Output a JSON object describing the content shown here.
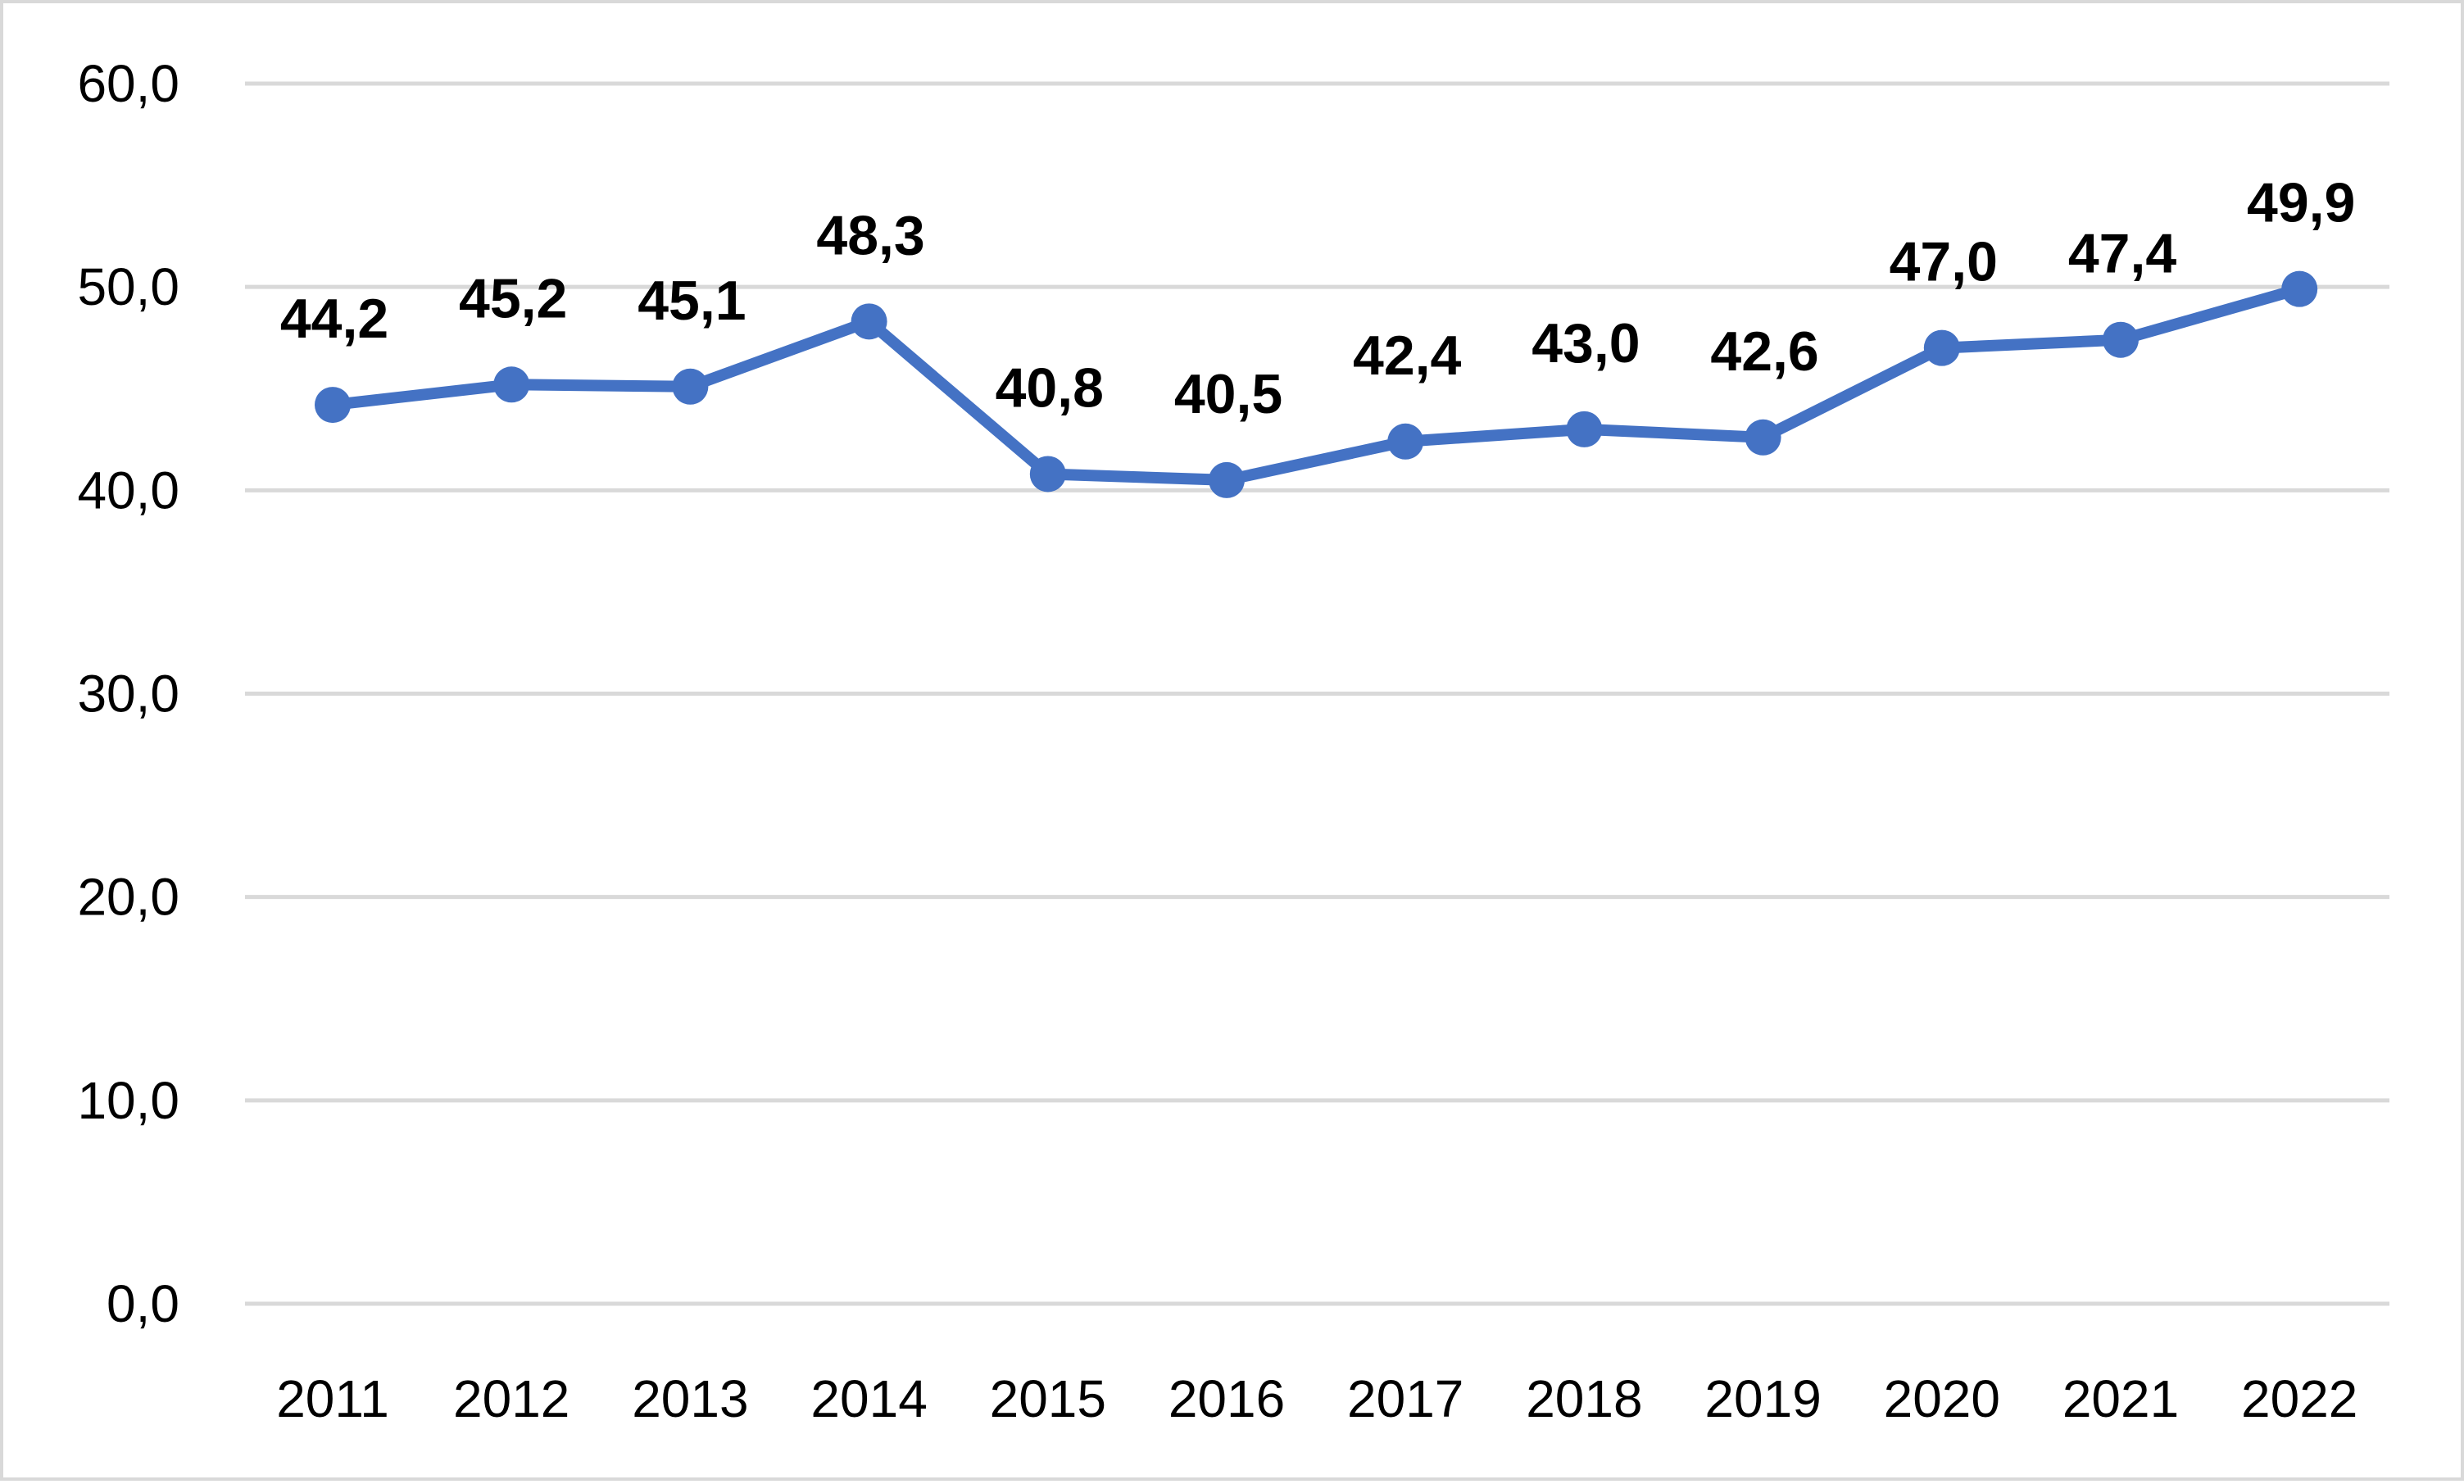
{
  "chart_data": {
    "type": "line",
    "categories": [
      "2011",
      "2012",
      "2013",
      "2014",
      "2015",
      "2016",
      "2017",
      "2018",
      "2019",
      "2020",
      "2021",
      "2022"
    ],
    "series": [
      {
        "values": [
          44.2,
          45.2,
          45.1,
          48.3,
          40.8,
          40.5,
          42.4,
          43.0,
          42.6,
          47.0,
          47.4,
          49.9
        ],
        "labels": [
          "44,2",
          "45,2",
          "45,1",
          "48,3",
          "40,8",
          "40,5",
          "42,4",
          "43,0",
          "42,6",
          "47,0",
          "47,4",
          "49,9"
        ],
        "color": "#4472c4"
      }
    ],
    "ylim": [
      0,
      60
    ],
    "yticks": [
      0,
      10,
      20,
      30,
      40,
      50,
      60
    ],
    "ytick_labels": [
      "0,0",
      "10,0",
      "20,0",
      "30,0",
      "40,0",
      "50,0",
      "60,0"
    ],
    "title": "",
    "xlabel": "",
    "ylabel": "",
    "grid": true,
    "legend": "none",
    "gridline_color": "#d9d9d9"
  }
}
